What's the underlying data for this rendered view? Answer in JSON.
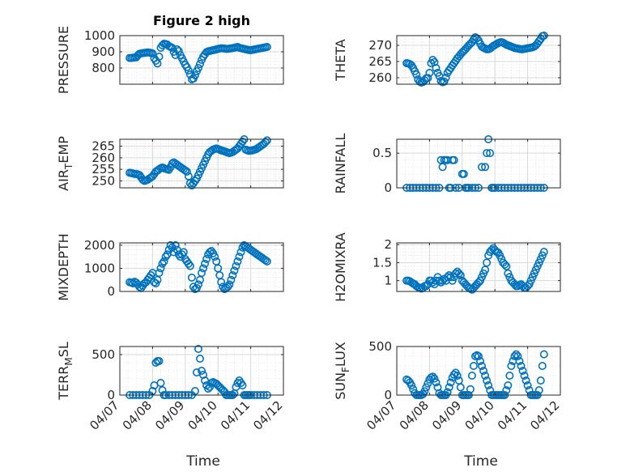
{
  "chart_data": [
    {
      "type": "scatter",
      "title": "Figure 2 high",
      "ylabel": "PRESSURE",
      "ylim": [
        700,
        1000
      ],
      "yticks": [
        800,
        900,
        1000
      ],
      "xlim": [
        "04/07",
        "04/12"
      ],
      "xticks": [
        "04/07",
        "04/08",
        "04/09",
        "04/10",
        "04/11",
        "04/12"
      ],
      "x": [
        0.3,
        0.35,
        0.4,
        0.45,
        0.5,
        0.55,
        0.6,
        0.65,
        0.7,
        0.75,
        0.8,
        0.85,
        0.9,
        0.95,
        1.0,
        1.05,
        1.1,
        1.15,
        1.2,
        1.25,
        1.3,
        1.35,
        1.4,
        1.45,
        1.5,
        1.55,
        1.6,
        1.65,
        1.7,
        1.75,
        1.8,
        1.85,
        1.9,
        1.95,
        2.0,
        2.05,
        2.1,
        2.15,
        2.2,
        2.25,
        2.3,
        2.35,
        2.4,
        2.45,
        2.5,
        2.55,
        2.6,
        2.65,
        2.7,
        2.75,
        2.8,
        2.85,
        2.9,
        2.95,
        3.0,
        3.05,
        3.1,
        3.15,
        3.2,
        3.25,
        3.3,
        3.35,
        3.4,
        3.45,
        3.5,
        3.55,
        3.6,
        3.65,
        3.7,
        3.75,
        3.8,
        3.85,
        3.9,
        3.95,
        4.0,
        4.05,
        4.1,
        4.15,
        4.2,
        4.25,
        4.3,
        4.35,
        4.4,
        4.45,
        4.5
      ],
      "y": [
        862,
        862,
        864,
        865,
        866,
        878,
        888,
        890,
        892,
        893,
        895,
        896,
        895,
        893,
        890,
        860,
        845,
        828,
        870,
        925,
        940,
        950,
        948,
        945,
        935,
        930,
        925,
        900,
        880,
        915,
        905,
        880,
        860,
        840,
        820,
        805,
        785,
        760,
        730,
        735,
        755,
        780,
        800,
        825,
        850,
        870,
        885,
        898,
        903,
        905,
        908,
        910,
        912,
        915,
        918,
        920,
        922,
        921,
        920,
        919,
        918,
        920,
        921,
        923,
        925,
        928,
        930,
        925,
        922,
        920,
        918,
        915,
        913,
        911,
        910,
        912,
        914,
        916,
        918,
        920,
        922,
        924,
        926,
        928,
        930
      ]
    },
    {
      "type": "scatter",
      "ylabel": "THETA",
      "ylim": [
        258,
        273
      ],
      "yticks": [
        260,
        265,
        270
      ],
      "x": [
        0.3,
        0.35,
        0.4,
        0.45,
        0.5,
        0.55,
        0.6,
        0.65,
        0.7,
        0.75,
        0.8,
        0.85,
        0.9,
        0.95,
        1.0,
        1.05,
        1.1,
        1.15,
        1.2,
        1.25,
        1.3,
        1.35,
        1.4,
        1.45,
        1.5,
        1.55,
        1.6,
        1.65,
        1.7,
        1.75,
        1.8,
        1.85,
        1.9,
        1.95,
        2.0,
        2.05,
        2.1,
        2.15,
        2.2,
        2.25,
        2.3,
        2.35,
        2.4,
        2.45,
        2.5,
        2.55,
        2.6,
        2.65,
        2.7,
        2.75,
        2.8,
        2.85,
        2.9,
        2.95,
        3.0,
        3.05,
        3.1,
        3.15,
        3.2,
        3.25,
        3.3,
        3.35,
        3.4,
        3.45,
        3.5,
        3.55,
        3.6,
        3.65,
        3.7,
        3.75,
        3.8,
        3.85,
        3.9,
        3.95,
        4.0,
        4.05,
        4.1,
        4.15,
        4.2,
        4.25,
        4.3,
        4.35,
        4.4,
        4.45,
        4.5
      ],
      "y": [
        264.5,
        264.4,
        264.2,
        263.8,
        263,
        262,
        261,
        259.5,
        258.8,
        258.5,
        258.7,
        259.2,
        259.8,
        259.9,
        261.5,
        264.5,
        265.5,
        264.8,
        263,
        261.5,
        260.5,
        259,
        258.6,
        258.8,
        260,
        261.5,
        262.3,
        263,
        263.8,
        264.5,
        265.2,
        266,
        266.6,
        267.2,
        267.8,
        268.3,
        268.8,
        269.4,
        270,
        270.5,
        271,
        271.8,
        272.5,
        272.2,
        271.5,
        270.5,
        269.6,
        269.3,
        269,
        268.8,
        268.8,
        269,
        269.4,
        269.8,
        270.1,
        270.4,
        270.7,
        270.9,
        271,
        270.8,
        270.5,
        270.2,
        270,
        269.8,
        269.6,
        269.4,
        269.2,
        269.1,
        269,
        268.9,
        268.8,
        268.8,
        268.9,
        269,
        269.1,
        269.2,
        269.3,
        269.4,
        269.6,
        270,
        270.6,
        271.3,
        272,
        272.8,
        273.5
      ]
    },
    {
      "type": "scatter",
      "ylabel": "AIR_TEMP",
      "ylim": [
        247,
        268
      ],
      "yticks": [
        250,
        255,
        260,
        265
      ],
      "x": [
        0.3,
        0.35,
        0.4,
        0.45,
        0.5,
        0.55,
        0.6,
        0.65,
        0.7,
        0.75,
        0.8,
        0.85,
        0.9,
        0.95,
        1.0,
        1.05,
        1.1,
        1.15,
        1.2,
        1.25,
        1.3,
        1.35,
        1.4,
        1.45,
        1.5,
        1.55,
        1.6,
        1.65,
        1.7,
        1.75,
        1.8,
        1.85,
        1.9,
        1.95,
        2.0,
        2.05,
        2.1,
        2.15,
        2.2,
        2.25,
        2.3,
        2.35,
        2.4,
        2.45,
        2.5,
        2.55,
        2.6,
        2.65,
        2.7,
        2.75,
        2.8,
        2.85,
        2.9,
        2.95,
        3.0,
        3.05,
        3.1,
        3.15,
        3.2,
        3.25,
        3.3,
        3.35,
        3.4,
        3.45,
        3.5,
        3.55,
        3.6,
        3.65,
        3.7,
        3.75,
        3.8,
        3.85,
        3.9,
        3.95,
        4.0,
        4.05,
        4.1,
        4.15,
        4.2,
        4.25,
        4.3,
        4.35,
        4.4,
        4.45,
        4.5
      ],
      "y": [
        253.5,
        253.4,
        253.2,
        253,
        253,
        252.8,
        252.5,
        251.5,
        250.5,
        250,
        250.2,
        250.5,
        251,
        251.5,
        252,
        253,
        254,
        254.5,
        255,
        255.5,
        255.8,
        255.5,
        255.2,
        255,
        254.8,
        256,
        257.5,
        258,
        257.5,
        257,
        256.5,
        256,
        255.5,
        255,
        254.5,
        254,
        252,
        249,
        248,
        249,
        250,
        251,
        252.5,
        254,
        255.5,
        257,
        258.5,
        260,
        261.5,
        262.5,
        263,
        263.5,
        263.8,
        264,
        263.8,
        263.5,
        263.2,
        263,
        262.8,
        262.5,
        262.2,
        262,
        262.2,
        262.5,
        263,
        263.5,
        264,
        265,
        266,
        267,
        268,
        263.5,
        263.2,
        263,
        263.1,
        263.2,
        263.4,
        263.6,
        264,
        264.5,
        265,
        265.5,
        266,
        266.8,
        267.5
      ]
    },
    {
      "type": "scatter",
      "ylabel": "RAINFALL",
      "ylim": [
        0,
        0.7
      ],
      "yticks": [
        0,
        0.5
      ],
      "x": [
        0.3,
        0.4,
        0.5,
        0.6,
        0.7,
        0.8,
        0.9,
        1.0,
        1.1,
        1.2,
        1.3,
        1.35,
        1.4,
        1.45,
        1.5,
        1.55,
        1.6,
        1.65,
        1.7,
        1.75,
        1.8,
        1.9,
        2.0,
        2.05,
        2.1,
        2.15,
        2.2,
        2.3,
        2.4,
        2.5,
        2.6,
        2.7,
        2.75,
        2.8,
        2.85,
        2.9,
        2.95,
        3.0,
        3.1,
        3.2,
        3.3,
        3.4,
        3.5,
        3.6,
        3.7,
        3.8,
        3.9,
        4.0,
        4.1,
        4.2,
        4.3,
        4.4,
        4.5
      ],
      "y": [
        0,
        0,
        0,
        0,
        0,
        0,
        0,
        0,
        0,
        0,
        0,
        0.4,
        0.3,
        0.4,
        0.4,
        0.4,
        0,
        0,
        0.4,
        0.4,
        0,
        0,
        0.2,
        0.2,
        0,
        0,
        0,
        0,
        0,
        0,
        0.3,
        0.3,
        0.5,
        0.7,
        0.5,
        0,
        0,
        0,
        0,
        0,
        0,
        0,
        0,
        0,
        0,
        0,
        0,
        0,
        0,
        0,
        0,
        0,
        0
      ]
    },
    {
      "type": "scatter",
      "ylabel": "MIXDEPTH",
      "ylim": [
        0,
        2100
      ],
      "yticks": [
        0,
        1000,
        2000
      ],
      "x": [
        0.3,
        0.35,
        0.4,
        0.45,
        0.5,
        0.55,
        0.6,
        0.65,
        0.7,
        0.75,
        0.8,
        0.85,
        0.9,
        0.95,
        1.0,
        1.05,
        1.1,
        1.15,
        1.2,
        1.25,
        1.3,
        1.35,
        1.4,
        1.45,
        1.5,
        1.55,
        1.6,
        1.65,
        1.7,
        1.75,
        1.8,
        1.85,
        1.9,
        1.95,
        2.0,
        2.05,
        2.1,
        2.15,
        2.2,
        2.25,
        2.3,
        2.35,
        2.4,
        2.45,
        2.5,
        2.55,
        2.6,
        2.65,
        2.7,
        2.75,
        2.8,
        2.85,
        2.9,
        2.95,
        3.0,
        3.05,
        3.1,
        3.15,
        3.2,
        3.25,
        3.3,
        3.35,
        3.4,
        3.45,
        3.5,
        3.55,
        3.6,
        3.65,
        3.7,
        3.75,
        3.8,
        3.85,
        3.9,
        3.95,
        4.0,
        4.05,
        4.1,
        4.15,
        4.2,
        4.25,
        4.3,
        4.35,
        4.4,
        4.45,
        4.5
      ],
      "y": [
        400,
        380,
        350,
        420,
        380,
        300,
        200,
        150,
        250,
        350,
        400,
        500,
        600,
        700,
        800,
        400,
        350,
        500,
        800,
        1000,
        1200,
        1300,
        1500,
        1600,
        1800,
        2000,
        1900,
        1700,
        2000,
        1800,
        1600,
        1500,
        1600,
        1700,
        1400,
        1300,
        1200,
        1100,
        600,
        200,
        100,
        150,
        300,
        500,
        800,
        1000,
        1200,
        1400,
        1600,
        1700,
        1750,
        1650,
        1500,
        1300,
        1000,
        700,
        400,
        200,
        100,
        150,
        200,
        300,
        500,
        700,
        900,
        1100,
        1300,
        1500,
        1700,
        1900,
        2000,
        1950,
        1900,
        1850,
        1800,
        1750,
        1700,
        1650,
        1600,
        1550,
        1500,
        1450,
        1400,
        1350,
        1300
      ]
    },
    {
      "type": "scatter",
      "ylabel": "H2OMIXRA",
      "ylim": [
        0.7,
        2.05
      ],
      "yticks": [
        1,
        1.5,
        2
      ],
      "x": [
        0.3,
        0.35,
        0.4,
        0.45,
        0.5,
        0.55,
        0.6,
        0.65,
        0.7,
        0.75,
        0.8,
        0.85,
        0.9,
        0.95,
        1.0,
        1.05,
        1.1,
        1.15,
        1.2,
        1.25,
        1.3,
        1.35,
        1.4,
        1.45,
        1.5,
        1.55,
        1.6,
        1.65,
        1.7,
        1.75,
        1.8,
        1.85,
        1.9,
        1.95,
        2.0,
        2.05,
        2.1,
        2.15,
        2.2,
        2.25,
        2.3,
        2.35,
        2.4,
        2.45,
        2.5,
        2.55,
        2.6,
        2.65,
        2.7,
        2.75,
        2.8,
        2.85,
        2.9,
        2.95,
        3.0,
        3.05,
        3.1,
        3.15,
        3.2,
        3.25,
        3.3,
        3.35,
        3.4,
        3.45,
        3.5,
        3.55,
        3.6,
        3.65,
        3.7,
        3.75,
        3.8,
        3.85,
        3.9,
        3.95,
        4.0,
        4.05,
        4.1,
        4.15,
        4.2,
        4.25,
        4.3,
        4.35,
        4.4,
        4.45,
        4.5
      ],
      "y": [
        1.0,
        1.0,
        0.98,
        0.95,
        0.92,
        0.9,
        0.85,
        0.82,
        0.8,
        0.78,
        0.8,
        0.85,
        0.85,
        0.9,
        1.0,
        1.0,
        0.95,
        0.9,
        1.0,
        1.1,
        1.0,
        0.95,
        1.0,
        1.05,
        1.0,
        1.1,
        1.15,
        1.1,
        1.0,
        1.1,
        1.2,
        1.25,
        1.2,
        1.15,
        1.0,
        0.95,
        0.9,
        0.85,
        0.8,
        0.78,
        0.75,
        0.8,
        0.85,
        0.9,
        0.95,
        1.0,
        1.1,
        1.2,
        1.3,
        1.5,
        1.7,
        1.8,
        1.85,
        1.9,
        1.85,
        1.8,
        1.78,
        1.7,
        1.6,
        1.5,
        1.45,
        1.4,
        1.2,
        1.1,
        1.0,
        0.95,
        0.9,
        0.85,
        0.85,
        0.88,
        0.9,
        0.85,
        0.8,
        0.8,
        0.85,
        0.9,
        1.0,
        1.1,
        1.2,
        1.3,
        1.4,
        1.5,
        1.6,
        1.7,
        1.8
      ]
    },
    {
      "type": "scatter",
      "ylabel": "TERR_MSL",
      "ylim": [
        0,
        600
      ],
      "yticks": [
        0,
        500
      ],
      "x": [
        0.3,
        0.4,
        0.5,
        0.6,
        0.7,
        0.8,
        0.9,
        1.0,
        1.05,
        1.1,
        1.15,
        1.2,
        1.25,
        1.3,
        1.35,
        1.4,
        1.5,
        1.6,
        1.7,
        1.8,
        1.9,
        2.0,
        2.1,
        2.2,
        2.3,
        2.35,
        2.4,
        2.45,
        2.5,
        2.55,
        2.6,
        2.65,
        2.7,
        2.75,
        2.8,
        2.85,
        2.9,
        2.95,
        3.0,
        3.05,
        3.1,
        3.15,
        3.2,
        3.25,
        3.3,
        3.35,
        3.4,
        3.45,
        3.5,
        3.55,
        3.6,
        3.65,
        3.7,
        3.75,
        3.8,
        3.85,
        3.9,
        3.95,
        4.0,
        4.1,
        4.2,
        4.3,
        4.4,
        4.5
      ],
      "y": [
        0,
        0,
        0,
        0,
        0,
        0,
        0,
        50,
        120,
        400,
        420,
        420,
        150,
        60,
        0,
        0,
        0,
        0,
        0,
        0,
        0,
        0,
        0,
        0,
        50,
        280,
        570,
        450,
        300,
        250,
        180,
        120,
        80,
        100,
        150,
        160,
        150,
        140,
        120,
        100,
        80,
        60,
        40,
        0,
        0,
        0,
        0,
        0,
        20,
        100,
        150,
        180,
        150,
        120,
        0,
        0,
        0,
        0,
        0,
        0,
        0,
        0,
        0,
        0
      ]
    },
    {
      "type": "scatter",
      "ylabel": "SUN_FLUX",
      "ylim": [
        0,
        500
      ],
      "yticks": [
        0,
        500
      ],
      "x": [
        0.3,
        0.35,
        0.4,
        0.45,
        0.5,
        0.55,
        0.6,
        0.65,
        0.7,
        0.75,
        0.8,
        0.85,
        0.9,
        0.95,
        1.0,
        1.05,
        1.1,
        1.15,
        1.2,
        1.25,
        1.3,
        1.35,
        1.4,
        1.45,
        1.5,
        1.55,
        1.6,
        1.65,
        1.7,
        1.75,
        1.8,
        1.85,
        1.9,
        1.95,
        2.0,
        2.05,
        2.1,
        2.15,
        2.2,
        2.25,
        2.3,
        2.35,
        2.4,
        2.45,
        2.5,
        2.55,
        2.6,
        2.65,
        2.7,
        2.75,
        2.8,
        2.85,
        2.9,
        2.95,
        3.0,
        3.05,
        3.1,
        3.15,
        3.2,
        3.25,
        3.3,
        3.35,
        3.4,
        3.45,
        3.5,
        3.55,
        3.6,
        3.65,
        3.7,
        3.75,
        3.8,
        3.85,
        3.9,
        3.95,
        4.0,
        4.05,
        4.1,
        4.15,
        4.2,
        4.25,
        4.3,
        4.35,
        4.4,
        4.45,
        4.5
      ],
      "y": [
        160,
        150,
        130,
        100,
        60,
        20,
        0,
        0,
        0,
        0,
        10,
        40,
        80,
        120,
        160,
        180,
        190,
        170,
        130,
        80,
        20,
        0,
        0,
        0,
        0,
        30,
        80,
        130,
        180,
        210,
        230,
        200,
        150,
        80,
        0,
        0,
        0,
        0,
        0,
        60,
        200,
        300,
        400,
        410,
        400,
        350,
        300,
        250,
        200,
        150,
        100,
        50,
        0,
        0,
        0,
        0,
        0,
        0,
        0,
        0,
        0,
        50,
        100,
        200,
        300,
        350,
        400,
        420,
        400,
        350,
        300,
        250,
        200,
        150,
        100,
        50,
        0,
        0,
        0,
        0,
        0,
        50,
        150,
        300,
        420
      ]
    }
  ],
  "xlabel": "Time",
  "marker_color": "#0072bd"
}
